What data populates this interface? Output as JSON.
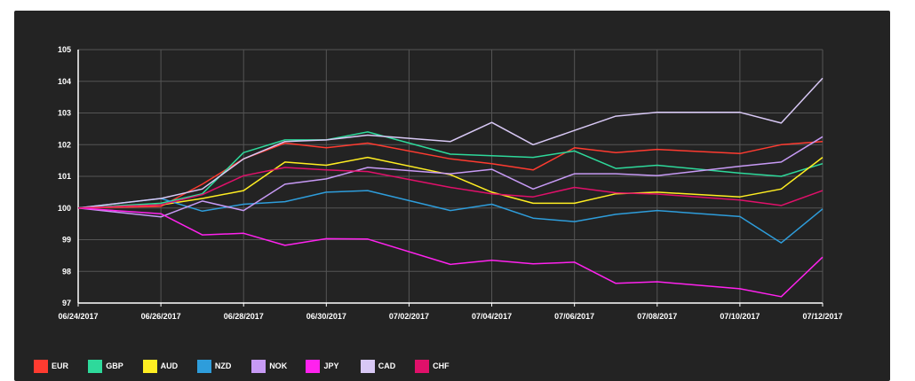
{
  "chart_data": {
    "type": "line",
    "title": "",
    "xlabel": "",
    "ylabel": "",
    "ylim": [
      97,
      105
    ],
    "yticks": [
      97,
      98,
      99,
      100,
      101,
      102,
      103,
      104,
      105
    ],
    "grid": true,
    "legend_position": "bottom-left",
    "x": [
      "06/24/2017",
      "06/26/2017",
      "06/27/2017",
      "06/28/2017",
      "06/29/2017",
      "06/30/2017",
      "07/01/2017",
      "07/03/2017",
      "07/04/2017",
      "07/05/2017",
      "07/06/2017",
      "07/07/2017",
      "07/08/2017",
      "07/10/2017",
      "07/11/2017",
      "07/12/2017"
    ],
    "xtick_labels": [
      "06/24/2017",
      "06/26/2017",
      "06/28/2017",
      "06/30/2017",
      "07/02/2017",
      "07/04/2017",
      "07/06/2017",
      "07/08/2017",
      "07/10/2017",
      "07/12/2017"
    ],
    "series": [
      {
        "name": "EUR",
        "color": "#ff3b30",
        "values": [
          100,
          100.05,
          100.75,
          101.55,
          102.05,
          101.9,
          102.05,
          101.55,
          101.4,
          101.2,
          101.9,
          101.75,
          101.85,
          101.72,
          102.0,
          102.1
        ]
      },
      {
        "name": "GBP",
        "color": "#2ed99b",
        "values": [
          100,
          100.15,
          100.45,
          101.75,
          102.15,
          102.15,
          102.4,
          101.7,
          101.65,
          101.6,
          101.8,
          101.25,
          101.35,
          101.1,
          101.0,
          101.4
        ]
      },
      {
        "name": "AUD",
        "color": "#ffee22",
        "values": [
          100,
          100.1,
          100.3,
          100.55,
          101.45,
          101.35,
          101.6,
          101.05,
          100.5,
          100.15,
          100.15,
          100.45,
          100.5,
          100.35,
          100.6,
          101.6
        ]
      },
      {
        "name": "NZD",
        "color": "#2e9ddb",
        "values": [
          100,
          100.3,
          99.9,
          100.12,
          100.2,
          100.5,
          100.55,
          99.92,
          100.12,
          99.68,
          99.57,
          99.8,
          99.92,
          99.73,
          98.9,
          99.97
        ]
      },
      {
        "name": "NOK",
        "color": "#c79af5",
        "values": [
          100,
          99.72,
          100.22,
          99.92,
          100.75,
          100.92,
          101.28,
          101.08,
          101.22,
          100.6,
          101.08,
          101.08,
          101.02,
          101.32,
          101.45,
          102.25
        ]
      },
      {
        "name": "JPY",
        "color": "#ff22ee",
        "values": [
          100,
          99.82,
          99.15,
          99.2,
          98.82,
          99.03,
          99.02,
          98.22,
          98.35,
          98.24,
          98.29,
          97.62,
          97.67,
          97.45,
          97.2,
          98.45
        ]
      },
      {
        "name": "CAD",
        "color": "#d8c8f5",
        "values": [
          100,
          100.3,
          100.6,
          101.55,
          102.1,
          102.15,
          102.3,
          102.1,
          102.7,
          102.0,
          102.45,
          102.9,
          103.02,
          103.02,
          102.68,
          104.1
        ]
      },
      {
        "name": "CHF",
        "color": "#e0106a",
        "values": [
          100,
          100.1,
          100.42,
          101.02,
          101.28,
          101.2,
          101.15,
          100.65,
          100.45,
          100.35,
          100.65,
          100.48,
          100.44,
          100.25,
          100.08,
          100.55
        ]
      }
    ]
  }
}
